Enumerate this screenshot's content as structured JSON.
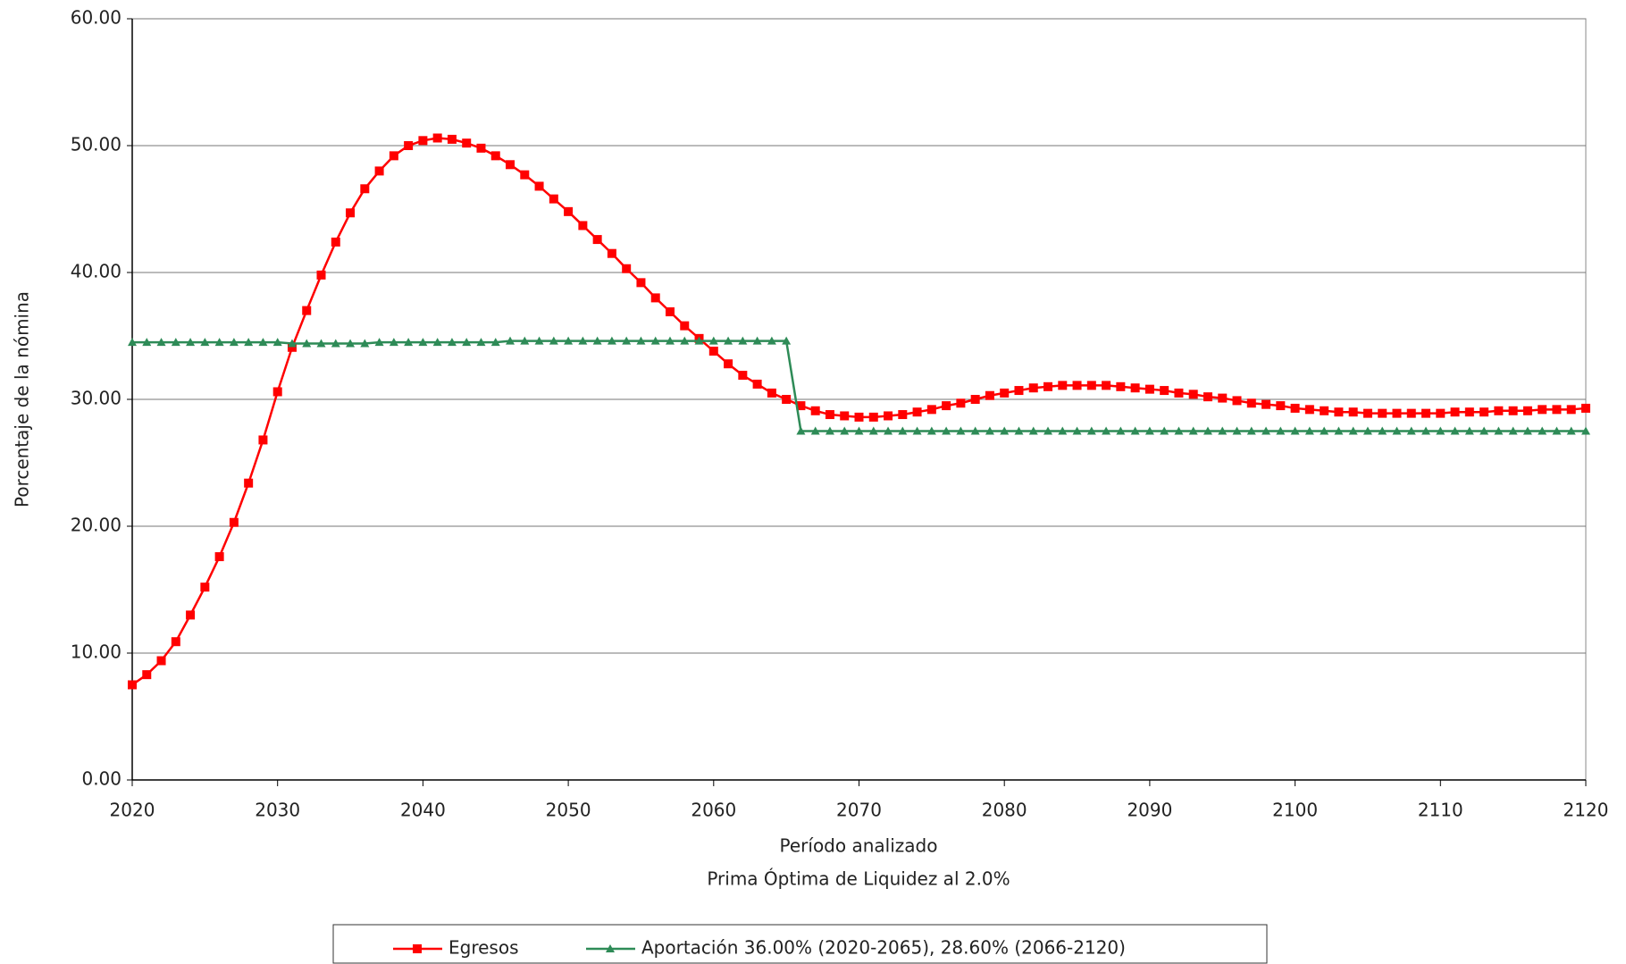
{
  "chart_data": {
    "type": "line",
    "y_label": "Porcentaje de la nómina",
    "x_label": "Período analizado",
    "subtitle": "Prima Óptima de Liquidez al 2.0%",
    "x": [
      2020,
      2021,
      2022,
      2023,
      2024,
      2025,
      2026,
      2027,
      2028,
      2029,
      2030,
      2031,
      2032,
      2033,
      2034,
      2035,
      2036,
      2037,
      2038,
      2039,
      2040,
      2041,
      2042,
      2043,
      2044,
      2045,
      2046,
      2047,
      2048,
      2049,
      2050,
      2051,
      2052,
      2053,
      2054,
      2055,
      2056,
      2057,
      2058,
      2059,
      2060,
      2061,
      2062,
      2063,
      2064,
      2065,
      2066,
      2067,
      2068,
      2069,
      2070,
      2071,
      2072,
      2073,
      2074,
      2075,
      2076,
      2077,
      2078,
      2079,
      2080,
      2081,
      2082,
      2083,
      2084,
      2085,
      2086,
      2087,
      2088,
      2089,
      2090,
      2091,
      2092,
      2093,
      2094,
      2095,
      2096,
      2097,
      2098,
      2099,
      2100,
      2101,
      2102,
      2103,
      2104,
      2105,
      2106,
      2107,
      2108,
      2109,
      2110,
      2111,
      2112,
      2113,
      2114,
      2115,
      2116,
      2117,
      2118,
      2119,
      2120
    ],
    "series": [
      {
        "name": "Egresos",
        "color": "#ff0000",
        "marker": "square",
        "values": [
          7.5,
          8.3,
          9.4,
          10.9,
          13.0,
          15.2,
          17.6,
          20.3,
          23.4,
          26.8,
          30.6,
          34.1,
          37.0,
          39.8,
          42.4,
          44.7,
          46.6,
          48.0,
          49.2,
          50.0,
          50.4,
          50.6,
          50.5,
          50.2,
          49.8,
          49.2,
          48.5,
          47.7,
          46.8,
          45.8,
          44.8,
          43.7,
          42.6,
          41.5,
          40.3,
          39.2,
          38.0,
          36.9,
          35.8,
          34.8,
          33.8,
          32.8,
          31.9,
          31.2,
          30.5,
          30.0,
          29.5,
          29.1,
          28.8,
          28.7,
          28.6,
          28.6,
          28.7,
          28.8,
          29.0,
          29.2,
          29.5,
          29.7,
          30.0,
          30.3,
          30.5,
          30.7,
          30.9,
          31.0,
          31.1,
          31.1,
          31.1,
          31.1,
          31.0,
          30.9,
          30.8,
          30.7,
          30.5,
          30.4,
          30.2,
          30.1,
          29.9,
          29.7,
          29.6,
          29.5,
          29.3,
          29.2,
          29.1,
          29.0,
          29.0,
          28.9,
          28.9,
          28.9,
          28.9,
          28.9,
          28.9,
          29.0,
          29.0,
          29.0,
          29.1,
          29.1,
          29.1,
          29.2,
          29.2,
          29.2,
          29.3
        ]
      },
      {
        "name": "Aportación 36.00% (2020-2065), 28.60% (2066-2120)",
        "color": "#2e8b57",
        "marker": "triangle",
        "values": [
          34.5,
          34.5,
          34.5,
          34.5,
          34.5,
          34.5,
          34.5,
          34.5,
          34.5,
          34.5,
          34.5,
          34.4,
          34.4,
          34.4,
          34.4,
          34.4,
          34.4,
          34.5,
          34.5,
          34.5,
          34.5,
          34.5,
          34.5,
          34.5,
          34.5,
          34.5,
          34.6,
          34.6,
          34.6,
          34.6,
          34.6,
          34.6,
          34.6,
          34.6,
          34.6,
          34.6,
          34.6,
          34.6,
          34.6,
          34.6,
          34.6,
          34.6,
          34.6,
          34.6,
          34.6,
          34.6,
          27.5,
          27.5,
          27.5,
          27.5,
          27.5,
          27.5,
          27.5,
          27.5,
          27.5,
          27.5,
          27.5,
          27.5,
          27.5,
          27.5,
          27.5,
          27.5,
          27.5,
          27.5,
          27.5,
          27.5,
          27.5,
          27.5,
          27.5,
          27.5,
          27.5,
          27.5,
          27.5,
          27.5,
          27.5,
          27.5,
          27.5,
          27.5,
          27.5,
          27.5,
          27.5,
          27.5,
          27.5,
          27.5,
          27.5,
          27.5,
          27.5,
          27.5,
          27.5,
          27.5,
          27.5,
          27.5,
          27.5,
          27.5,
          27.5,
          27.5,
          27.5,
          27.5,
          27.5,
          27.5,
          27.5
        ]
      }
    ],
    "xlim": [
      2020,
      2120
    ],
    "xticks": [
      2020,
      2030,
      2040,
      2050,
      2060,
      2070,
      2080,
      2090,
      2100,
      2110,
      2120
    ],
    "ylim": [
      0,
      60
    ],
    "yticks": [
      {
        "value": 0,
        "label": "0.00"
      },
      {
        "value": 10,
        "label": "10.00"
      },
      {
        "value": 20,
        "label": "20.00"
      },
      {
        "value": 30,
        "label": "30.00"
      },
      {
        "value": 40,
        "label": "40.00"
      },
      {
        "value": 50,
        "label": "50.00"
      },
      {
        "value": 60,
        "label": "60.00"
      }
    ],
    "grid": true,
    "legend": "bottom"
  }
}
